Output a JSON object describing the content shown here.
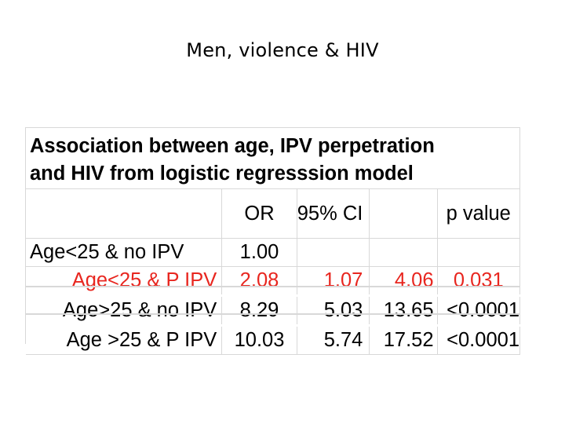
{
  "slide": {
    "title": "Men, violence & HIV"
  },
  "table": {
    "heading_line1": "Association between age, IPV perpetration",
    "heading_line2": "and HIV from logistic regresssion model",
    "columns": [
      "",
      "OR",
      "95% CI",
      "",
      "p value"
    ],
    "rows": [
      {
        "label": "Age<25 & no IPV",
        "or": "1.00",
        "ci_low": "",
        "ci_high": "",
        "p": "",
        "highlight": false
      },
      {
        "label": "Age<25 & P IPV",
        "or": "2.08",
        "ci_low": "1.07",
        "ci_high": "4.06",
        "p": "0.031",
        "highlight": true
      },
      {
        "label": "Age>25 & no IPV",
        "or": "8.29",
        "ci_low": "5.03",
        "ci_high": "13.65",
        "p": "<0.0001",
        "highlight": false
      },
      {
        "label": "Age >25 & P IPV",
        "or": "10.03",
        "ci_low": "5.74",
        "ci_high": "17.52",
        "p": "<0.0001",
        "highlight": false
      }
    ],
    "highlight_color": "#e8261f"
  }
}
